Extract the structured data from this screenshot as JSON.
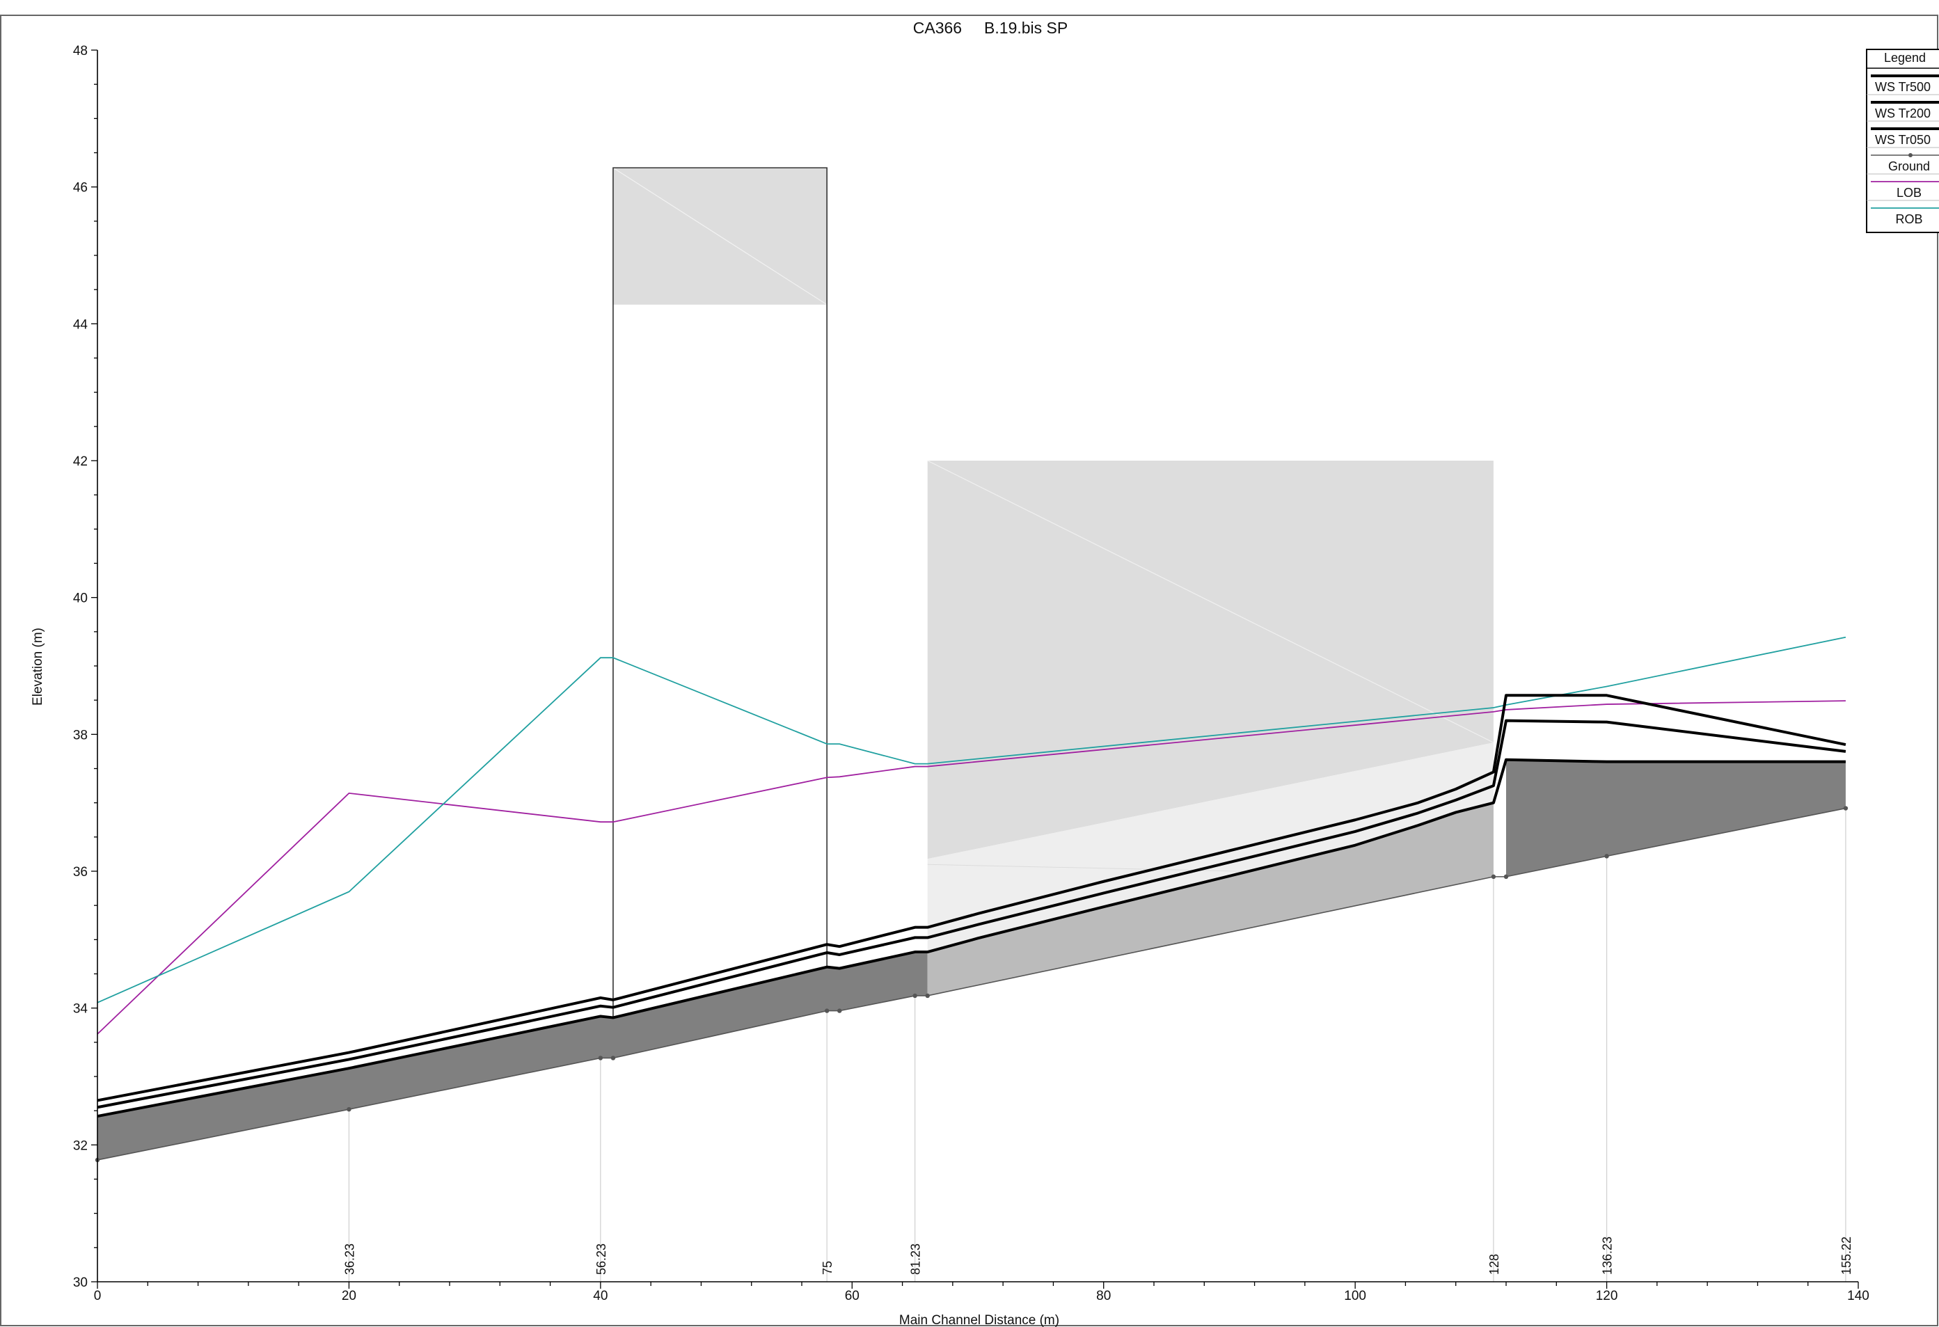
{
  "chart_data": {
    "type": "line",
    "title": "CA366     B.19.bis SP",
    "xlabel": "Main Channel Distance (m)",
    "ylabel": "Elevation (m)",
    "xlim": [
      0,
      140
    ],
    "ylim": [
      30,
      48
    ],
    "x_ticks": [
      0,
      20,
      40,
      60,
      80,
      100,
      120,
      140
    ],
    "y_ticks": [
      30,
      32,
      34,
      36,
      38,
      40,
      42,
      44,
      46,
      48
    ],
    "grid": false,
    "legend": {
      "title": "Legend",
      "position": "top-right",
      "entries": [
        "WS  Tr500",
        "WS  Tr200",
        "WS  Tr050",
        "Ground",
        "LOB",
        "ROB"
      ]
    },
    "colors": {
      "ws": "#000000",
      "ground_fill": "#808080",
      "ground_line": "#555555",
      "lob": "#a020a0",
      "rob": "#20a0a0",
      "structure_fill": "#dddddd",
      "structure_light": "#eeeeee",
      "culvert_fill": "#bbbbbb"
    },
    "station_labels": [
      {
        "x": 20,
        "label": "36.23"
      },
      {
        "x": 40,
        "label": "56.23"
      },
      {
        "x": 58,
        "label": "75"
      },
      {
        "x": 65,
        "label": "81.23"
      },
      {
        "x": 111,
        "label": "128"
      },
      {
        "x": 120,
        "label": "136.23"
      },
      {
        "x": 139,
        "label": "155.22"
      }
    ],
    "series": [
      {
        "name": "WS  Tr500",
        "x": [
          0,
          20,
          40,
          41,
          58,
          59,
          65,
          66,
          70,
          80,
          90,
          100,
          105,
          108,
          111,
          112,
          120,
          139
        ],
        "y": [
          32.65,
          33.35,
          34.15,
          34.12,
          34.93,
          34.9,
          35.18,
          35.18,
          35.38,
          35.85,
          36.3,
          36.75,
          37.0,
          37.2,
          37.45,
          38.57,
          38.57,
          37.85
        ]
      },
      {
        "name": "WS  Tr200",
        "x": [
          0,
          20,
          40,
          41,
          58,
          59,
          65,
          66,
          70,
          80,
          90,
          100,
          105,
          108,
          111,
          112,
          120,
          139
        ],
        "y": [
          32.55,
          33.25,
          34.03,
          34.01,
          34.81,
          34.78,
          35.03,
          35.03,
          35.22,
          35.68,
          36.13,
          36.58,
          36.85,
          37.04,
          37.25,
          38.2,
          38.18,
          37.75
        ]
      },
      {
        "name": "WS  Tr050",
        "x": [
          0,
          20,
          40,
          41,
          58,
          59,
          65,
          66,
          70,
          80,
          90,
          100,
          105,
          108,
          111,
          112,
          120,
          139
        ],
        "y": [
          32.42,
          33.12,
          33.88,
          33.86,
          34.6,
          34.58,
          34.82,
          34.82,
          35.02,
          35.48,
          35.93,
          36.38,
          36.67,
          36.86,
          37.0,
          37.63,
          37.6,
          37.6
        ]
      },
      {
        "name": "Ground",
        "x": [
          0,
          20,
          40,
          41,
          58,
          59,
          65,
          66,
          111,
          112,
          120,
          139
        ],
        "y": [
          31.78,
          32.52,
          33.27,
          33.27,
          33.96,
          33.96,
          34.18,
          34.18,
          35.92,
          35.92,
          36.22,
          36.92
        ]
      },
      {
        "name": "LOB",
        "x": [
          0,
          20,
          40,
          41,
          58,
          59,
          65,
          66,
          111,
          112,
          120,
          139
        ],
        "y": [
          33.62,
          37.14,
          36.72,
          36.72,
          37.37,
          37.38,
          37.53,
          37.53,
          38.33,
          38.36,
          38.44,
          38.49
        ]
      },
      {
        "name": "ROB",
        "x": [
          0,
          20,
          40,
          41,
          58,
          59,
          65,
          66,
          111,
          112,
          120,
          139
        ],
        "y": [
          34.08,
          35.7,
          39.12,
          39.12,
          37.86,
          37.86,
          37.57,
          37.57,
          38.39,
          38.43,
          38.7,
          39.42
        ]
      }
    ],
    "structures": [
      {
        "kind": "bridge",
        "x_start": 41,
        "x_end": 58,
        "top": 46.28,
        "deck_bottom": 44.28
      },
      {
        "kind": "culvert",
        "x_start": 66,
        "x_end": 111,
        "top": 42.0,
        "deck_bottom_start": 36.18,
        "deck_bottom_end": 37.88
      }
    ]
  }
}
